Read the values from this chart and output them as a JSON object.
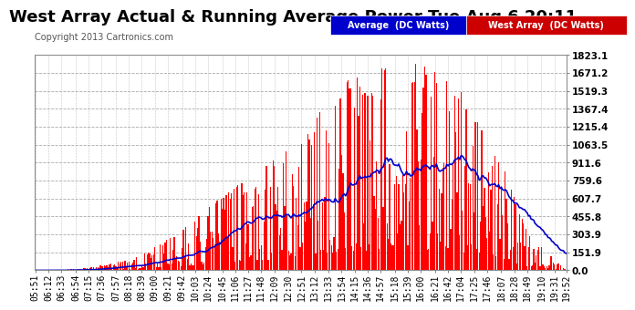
{
  "title": "West Array Actual & Running Average Power Tue Aug 6 20:11",
  "copyright": "Copyright 2013 Cartronics.com",
  "yticks": [
    0.0,
    151.9,
    303.9,
    455.8,
    607.7,
    759.6,
    911.6,
    1063.5,
    1215.4,
    1367.4,
    1519.3,
    1671.2,
    1823.1
  ],
  "ymax": 1823.1,
  "ymin": 0.0,
  "bar_color": "#FF0000",
  "avg_color": "#0000CC",
  "fig_bg_color": "#FFFFFF",
  "plot_bg_color": "#FFFFFF",
  "grid_color": "#AAAAAA",
  "legend_avg_bg": "#0000CC",
  "legend_west_bg": "#CC0000",
  "xtick_labels": [
    "05:51",
    "06:12",
    "06:33",
    "06:54",
    "07:15",
    "07:36",
    "07:57",
    "08:18",
    "08:39",
    "09:00",
    "09:21",
    "09:42",
    "10:03",
    "10:24",
    "10:45",
    "11:06",
    "11:27",
    "11:48",
    "12:09",
    "12:30",
    "12:51",
    "13:12",
    "13:33",
    "13:54",
    "14:15",
    "14:36",
    "14:57",
    "15:18",
    "15:39",
    "16:00",
    "16:21",
    "16:42",
    "17:04",
    "17:25",
    "17:46",
    "18:07",
    "18:28",
    "18:49",
    "19:10",
    "19:31",
    "19:52"
  ],
  "title_fontsize": 13,
  "copyright_fontsize": 7,
  "tick_fontsize": 7,
  "legend_fontsize": 7,
  "n_bars": 410,
  "xtick_every": 10
}
